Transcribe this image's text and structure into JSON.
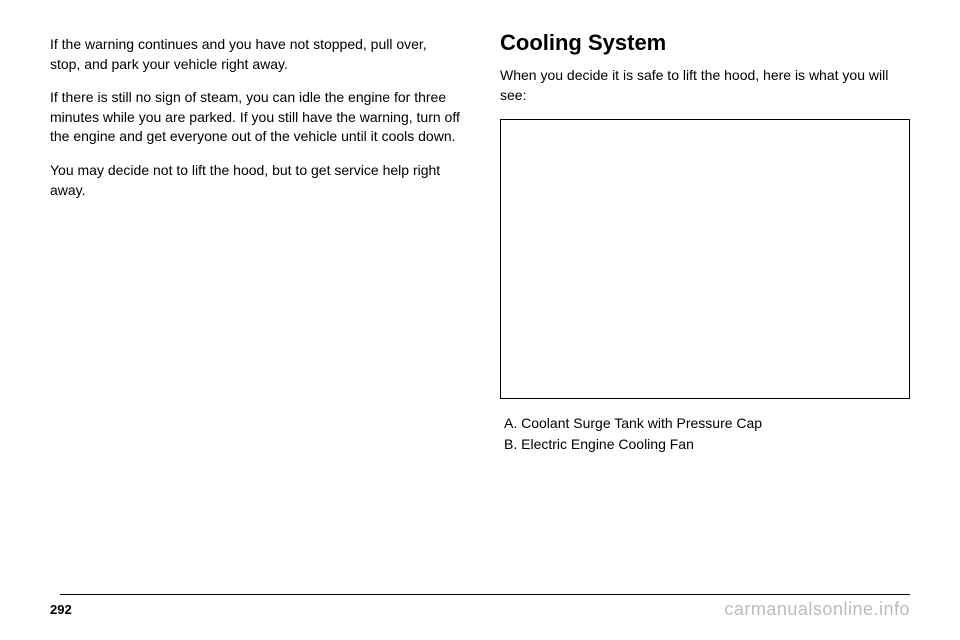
{
  "left_column": {
    "para1": "If the warning continues and you have not stopped, pull over, stop, and park your vehicle right away.",
    "para2": "If there is still no sign of steam, you can idle the engine for three minutes while you are parked. If you still have the warning, turn off the engine and get everyone out of the vehicle until it cools down.",
    "para3": "You may decide not to lift the hood, but to get service help right away."
  },
  "right_column": {
    "heading": "Cooling System",
    "intro": "When you decide it is safe to lift the hood, here is what you will see:",
    "items": {
      "a": "A.  Coolant Surge Tank with Pressure Cap",
      "b": "B.  Electric Engine Cooling Fan"
    }
  },
  "footer": {
    "page_number": "292",
    "watermark": "carmanualsonline.info"
  },
  "colors": {
    "text": "#000000",
    "background": "#ffffff",
    "watermark": "#bbbbbb",
    "border": "#000000"
  }
}
